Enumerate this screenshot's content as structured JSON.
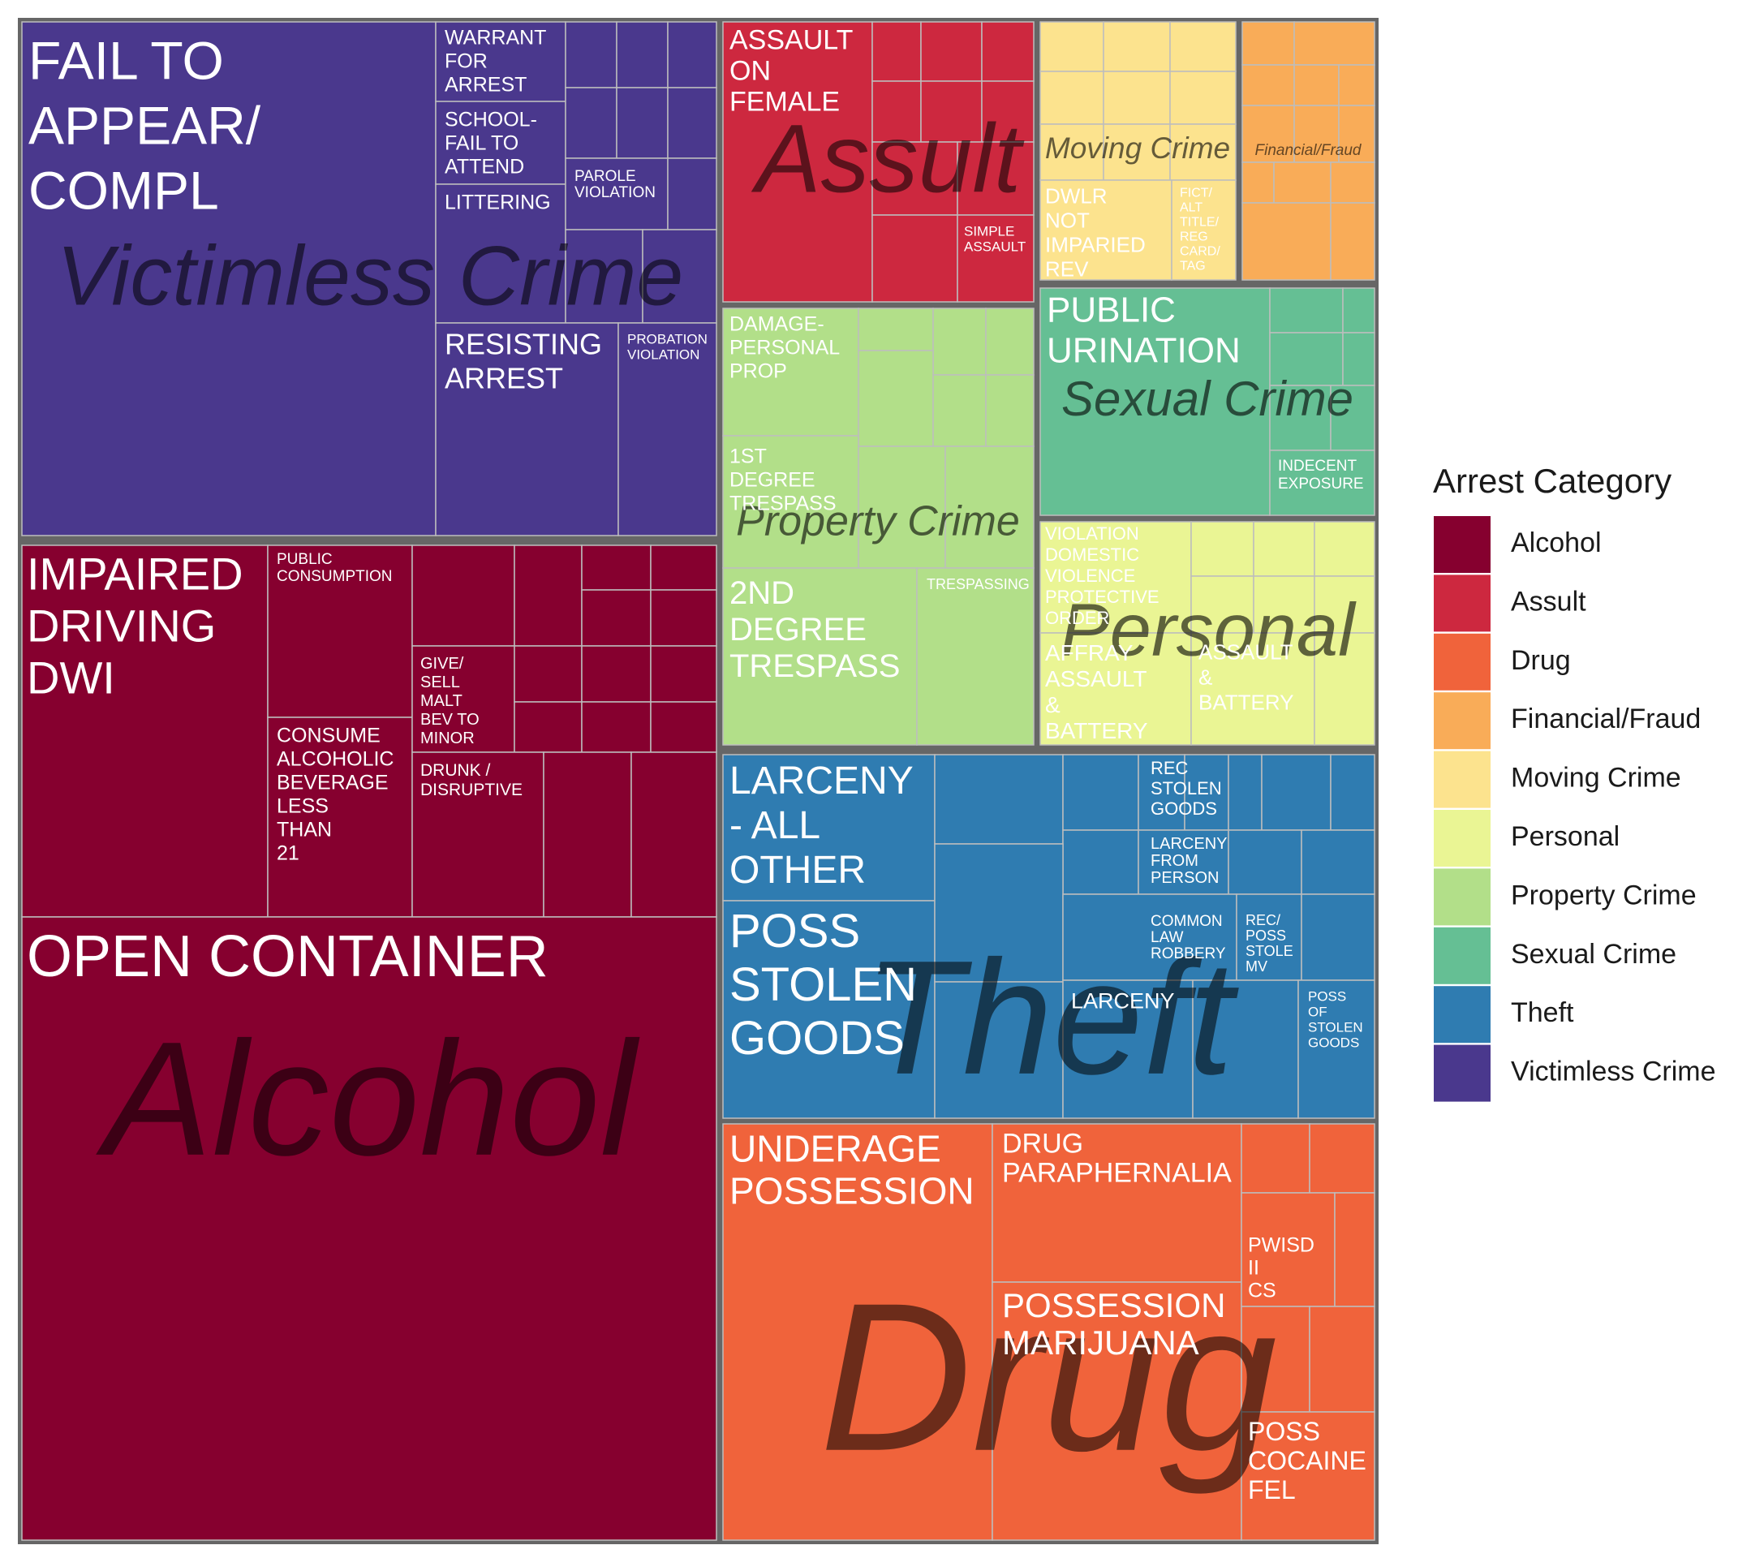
{
  "chart_data": {
    "type": "treemap",
    "legend": {
      "title": "Arrest Category",
      "position": "right",
      "items": [
        {
          "label": "Alcohol",
          "color": "#86002F"
        },
        {
          "label": "Assult",
          "color": "#CD283F"
        },
        {
          "label": "Drug",
          "color": "#F0633B"
        },
        {
          "label": "Financial/Fraud",
          "color": "#F9AC58"
        },
        {
          "label": "Moving Crime",
          "color": "#FCE38E"
        },
        {
          "label": "Personal",
          "color": "#EAF594"
        },
        {
          "label": "Property Crime",
          "color": "#B2DF89"
        },
        {
          "label": "Sexual Crime",
          "color": "#65BF94"
        },
        {
          "label": "Theft",
          "color": "#2F7CB1"
        },
        {
          "label": "Victimless Crime",
          "color": "#4A388D"
        }
      ]
    },
    "groups": [
      {
        "name": "Alcohol",
        "subgroups": [
          "OPEN CONTAINER",
          "IMPAIRED DRIVING DWI",
          "PUBLIC CONSUMPTION",
          "CONSUME ALCOHOLIC BEVERAGE LESS THAN 21",
          "GIVE/ SELL MALT BEV TO MINOR",
          "DRUNK / DISRUPTIVE"
        ]
      },
      {
        "name": "Victimless Crime",
        "subgroups": [
          "FAIL TO APPEAR/ COMPL",
          "WARRANT FOR ARREST",
          "SCHOOL- FAIL TO ATTEND",
          "LITTERING",
          "PAROLE VIOLATION",
          "RESISTING ARREST",
          "PROBATION VIOLATION"
        ]
      },
      {
        "name": "Drug",
        "subgroups": [
          "UNDERAGE POSSESSION",
          "DRUG PARAPHERNALIA",
          "POSSESSION MARIJUANA",
          "PWISD II CS",
          "POSS COCAINE FEL"
        ]
      },
      {
        "name": "Theft",
        "subgroups": [
          "LARCENY - ALL OTHER",
          "POSS STOLEN GOODS",
          "REC STOLEN GOODS",
          "LARCENY FROM PERSON",
          "COMMON LAW ROBBERY",
          "REC/ POSS STOLE MV",
          "LARCENY",
          "POSS OF STOLEN GOODS"
        ]
      },
      {
        "name": "Property Crime",
        "subgroups": [
          "DAMAGE- PERSONAL PROP",
          "1ST DEGREE TRESPASS",
          "2ND DEGREE TRESPASS",
          "TRESPASSING"
        ]
      },
      {
        "name": "Assult",
        "subgroups": [
          "ASSAULT ON FEMALE",
          "SIMPLE ASSAULT"
        ]
      },
      {
        "name": "Sexual Crime",
        "subgroups": [
          "PUBLIC URINATION",
          "INDECENT EXPOSURE"
        ]
      },
      {
        "name": "Personal",
        "subgroups": [
          "VIOLATION DOMESTIC VIOLENCE PROTECTIVE ORDER",
          "AFFRAY ASSAULT & BATTERY",
          "ASSAULT & BATTERY"
        ]
      },
      {
        "name": "Moving Crime",
        "subgroups": [
          "DWLR NOT IMPARIED REV",
          "FICT/ ALT TITLE/ REG CARD/ TAG"
        ]
      },
      {
        "name": "Financial/Fraud",
        "subgroups": []
      }
    ]
  }
}
